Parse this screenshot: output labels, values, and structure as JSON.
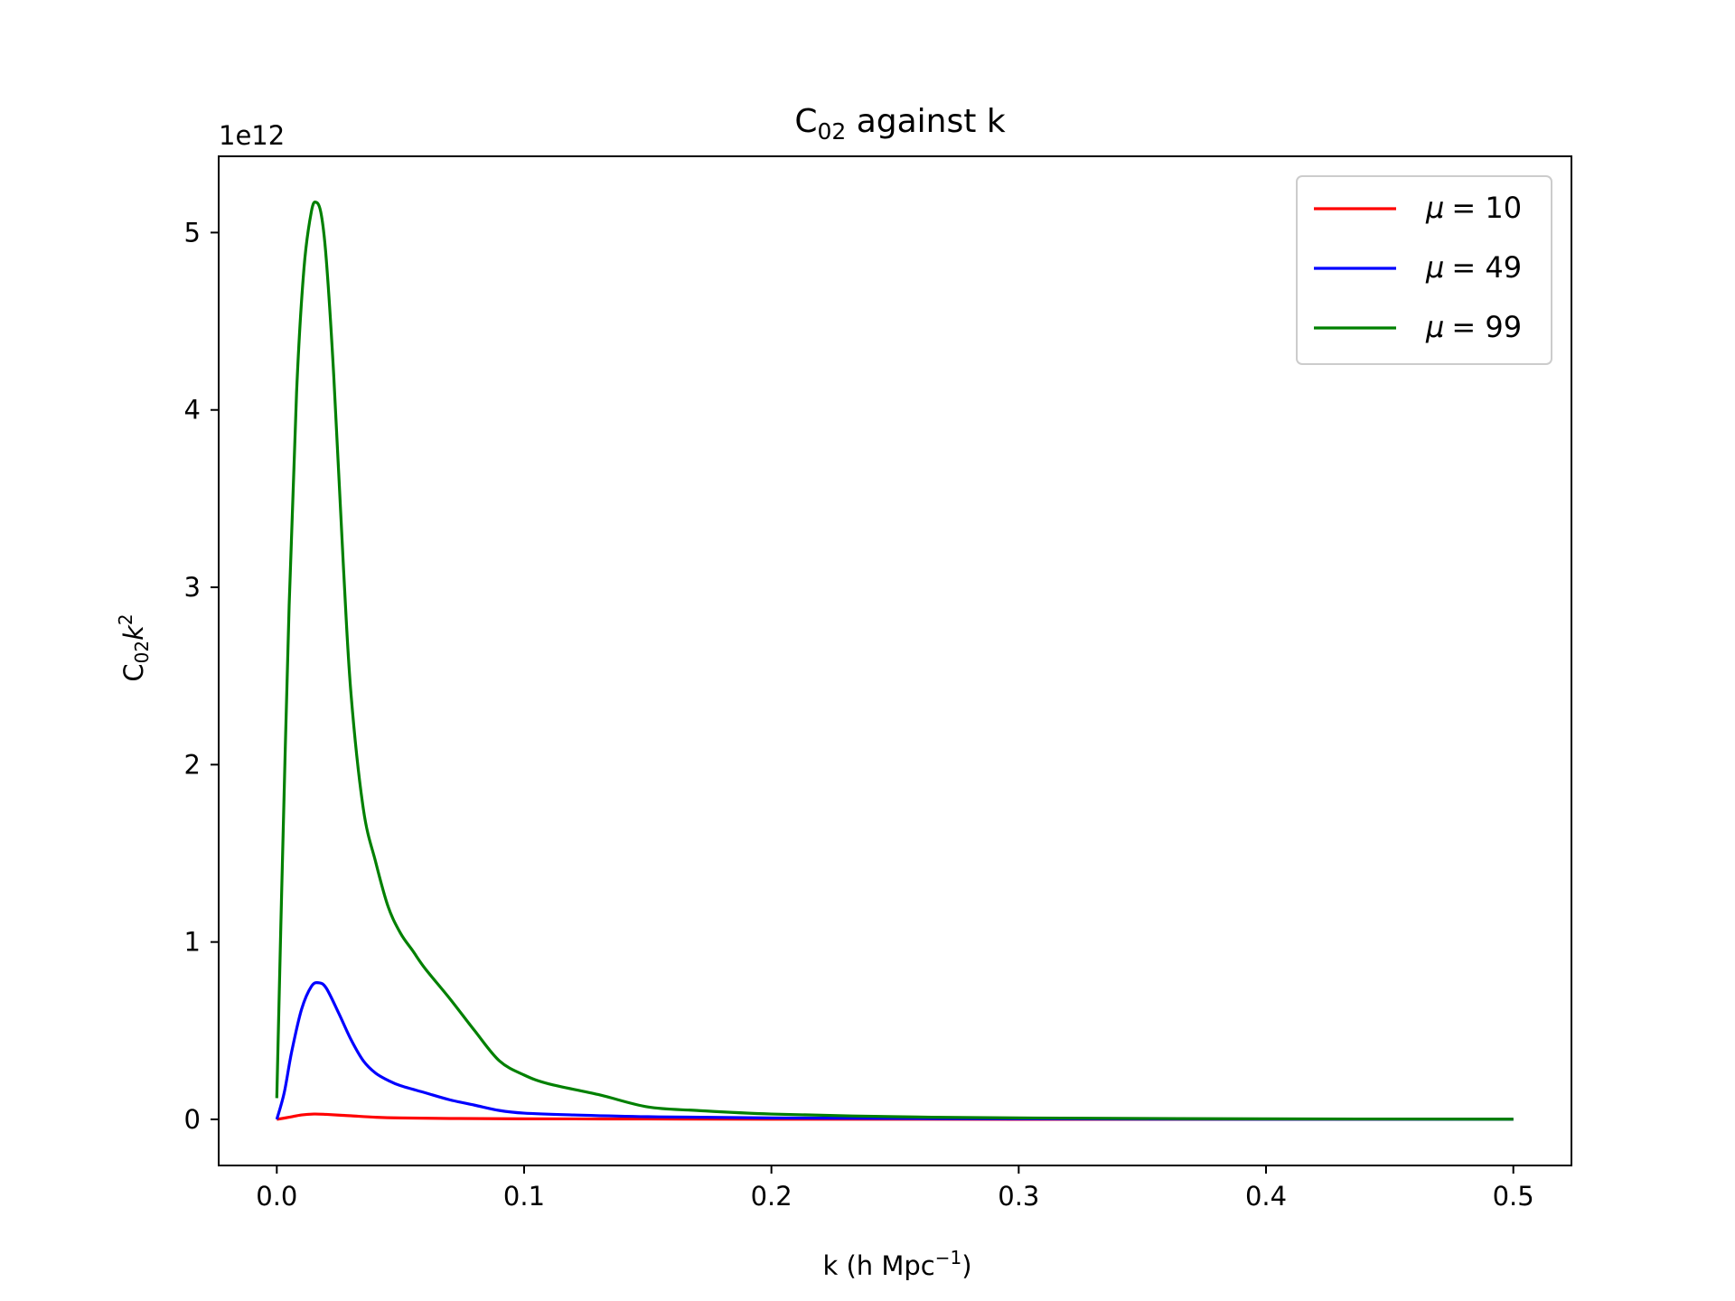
{
  "chart_data": {
    "type": "line",
    "title": "C",
    "title_sub": "02",
    "title_rest": " against k",
    "xlabel": "k (h Mpc",
    "xlabel_sup": "−1",
    "xlabel_end": ")",
    "ylabel": "C",
    "ylabel_sub": "02",
    "ylabel_k": "k",
    "ylabel_sup": "2",
    "offset_text": "1e12",
    "xlim": [
      -0.0235,
      0.5235
    ],
    "ylim": [
      -0.26,
      5.43
    ],
    "xticks": [
      0.0,
      0.1,
      0.2,
      0.3,
      0.4,
      0.5
    ],
    "xtick_labels": [
      "0.0",
      "0.1",
      "0.2",
      "0.3",
      "0.4",
      "0.5"
    ],
    "yticks": [
      0,
      1,
      2,
      3,
      4,
      5
    ],
    "ytick_labels": [
      "0",
      "1",
      "2",
      "3",
      "4",
      "5"
    ],
    "grid": false,
    "legend_position": "upper-right",
    "series": [
      {
        "name": "μ = 10",
        "legend_symbol": "μ",
        "legend_value": "= 10",
        "color": "#ff0000",
        "x": [
          0,
          0.005,
          0.01,
          0.015,
          0.02,
          0.03,
          0.04,
          0.05,
          0.07,
          0.1,
          0.15,
          0.2,
          0.3,
          0.4,
          0.5
        ],
        "y": [
          0,
          0.012,
          0.025,
          0.03,
          0.028,
          0.02,
          0.012,
          0.008,
          0.005,
          0.003,
          0.002,
          0.001,
          0.0006,
          0.0003,
          0.0001
        ]
      },
      {
        "name": "μ = 49",
        "legend_symbol": "μ",
        "legend_value": "= 49",
        "color": "#0000ff",
        "x": [
          0,
          0.003,
          0.006,
          0.01,
          0.014,
          0.017,
          0.02,
          0.025,
          0.03,
          0.035,
          0.04,
          0.045,
          0.05,
          0.06,
          0.07,
          0.08,
          0.09,
          0.1,
          0.12,
          0.15,
          0.2,
          0.3,
          0.4,
          0.5
        ],
        "y": [
          0.0,
          0.15,
          0.38,
          0.62,
          0.75,
          0.77,
          0.74,
          0.6,
          0.45,
          0.33,
          0.26,
          0.22,
          0.19,
          0.15,
          0.11,
          0.08,
          0.05,
          0.035,
          0.025,
          0.015,
          0.008,
          0.003,
          0.001,
          0.0005
        ]
      },
      {
        "name": "μ = 99",
        "legend_symbol": "μ",
        "legend_value": "= 99",
        "color": "#008000",
        "x": [
          0,
          0.002,
          0.005,
          0.008,
          0.011,
          0.014,
          0.016,
          0.018,
          0.02,
          0.023,
          0.027,
          0.03,
          0.035,
          0.04,
          0.045,
          0.05,
          0.055,
          0.06,
          0.07,
          0.08,
          0.09,
          0.1,
          0.11,
          0.13,
          0.15,
          0.17,
          0.2,
          0.25,
          0.3,
          0.4,
          0.5
        ],
        "y": [
          0.12,
          1.3,
          2.9,
          4.1,
          4.8,
          5.12,
          5.17,
          5.1,
          4.85,
          4.2,
          3.1,
          2.4,
          1.75,
          1.45,
          1.2,
          1.05,
          0.95,
          0.85,
          0.68,
          0.5,
          0.33,
          0.25,
          0.2,
          0.14,
          0.07,
          0.05,
          0.03,
          0.015,
          0.008,
          0.003,
          0.001
        ]
      }
    ]
  }
}
